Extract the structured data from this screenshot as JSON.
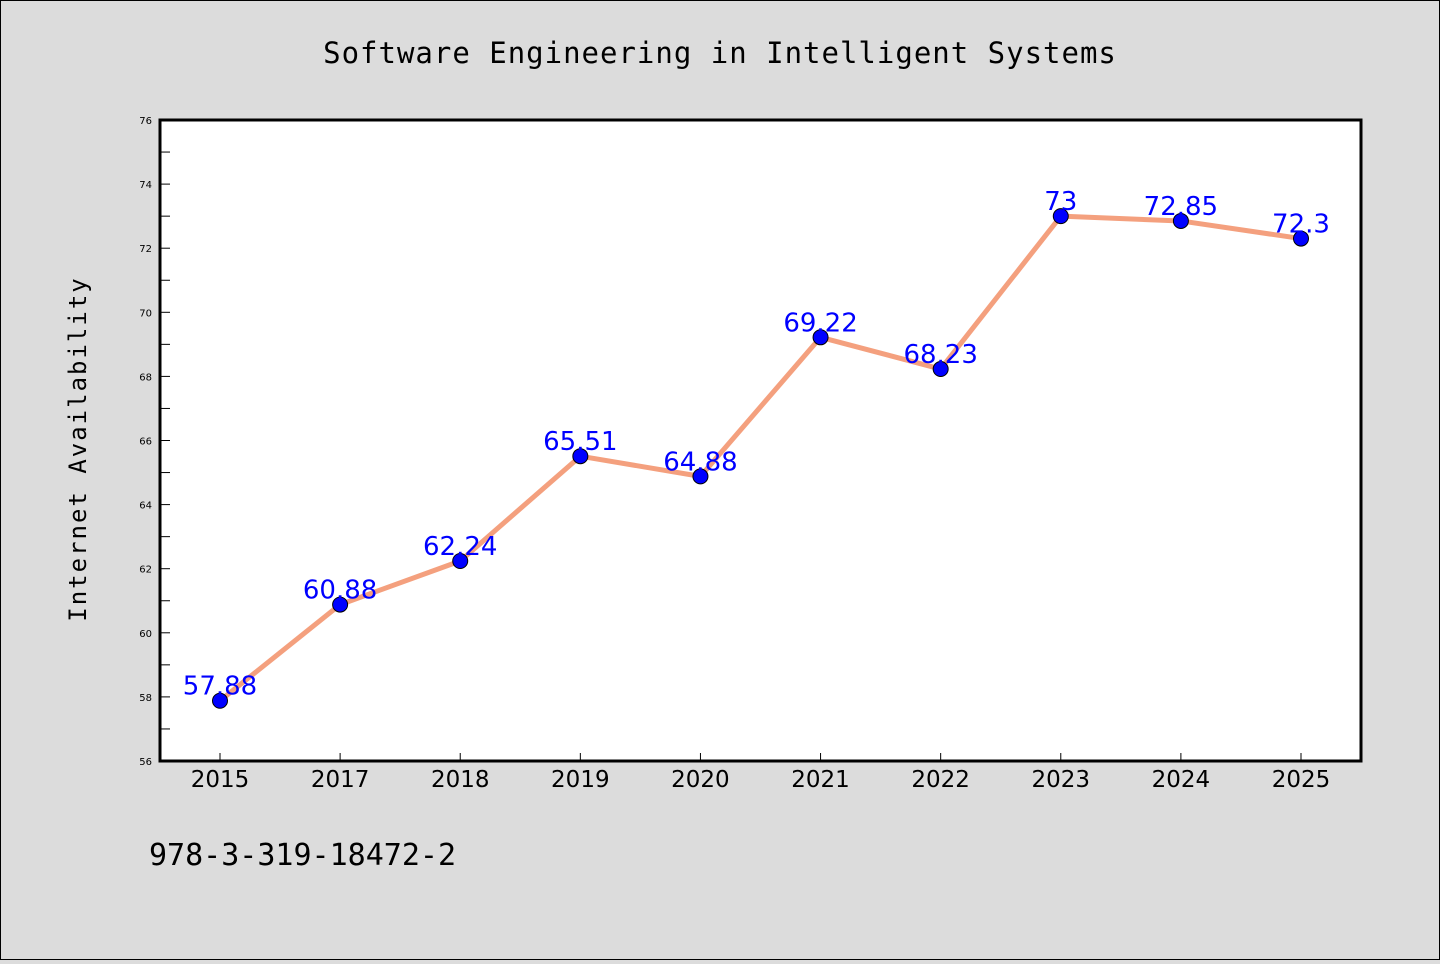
{
  "chart_data": {
    "type": "line",
    "title": "Software Engineering in Intelligent Systems",
    "xlabel": "",
    "ylabel": "Internet Availability",
    "categories": [
      "2015",
      "2017",
      "2018",
      "2019",
      "2020",
      "2021",
      "2022",
      "2023",
      "2024",
      "2025"
    ],
    "values": [
      57.88,
      60.88,
      62.24,
      65.51,
      64.88,
      69.22,
      68.23,
      73,
      72.85,
      72.3
    ],
    "data_labels": [
      "57.88",
      "60.88",
      "62.24",
      "65.51",
      "64.88",
      "69.22",
      "68.23",
      "73",
      "72.85",
      "72.3"
    ],
    "ylim": [
      56,
      76
    ],
    "yticks": [
      "56",
      "58",
      "60",
      "62",
      "64",
      "66",
      "68",
      "70",
      "72",
      "74",
      "76"
    ],
    "grid": false,
    "line_color": "#f4a07e",
    "marker_color": "#0000ff",
    "label_color": "#0000ff"
  },
  "footer": {
    "isbn": "978-3-319-18472-2"
  }
}
